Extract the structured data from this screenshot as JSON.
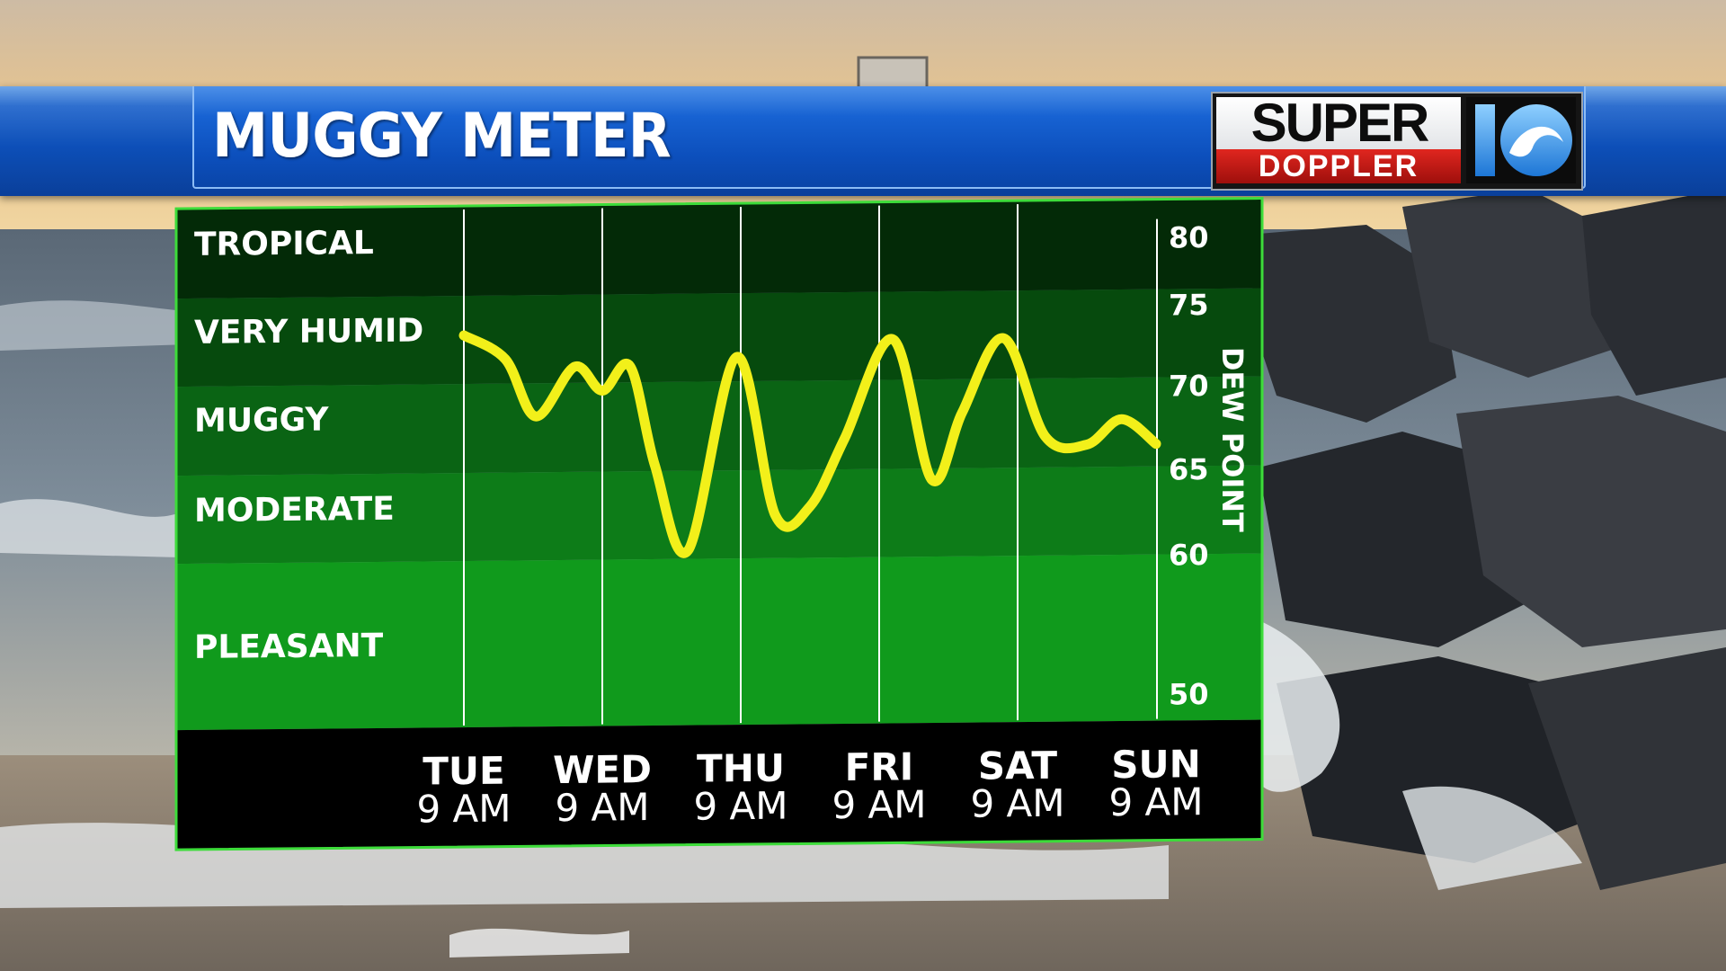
{
  "header": {
    "title": "MUGGY METER"
  },
  "logo": {
    "line1": "SUPER",
    "line2": "DOPPLER",
    "number": "10"
  },
  "colors": {
    "line": "#f2f01a",
    "bands": [
      "#032a07",
      "#064a0d",
      "#0a6414",
      "#0d7c18",
      "#109a1c"
    ],
    "chart_border": "#3ddc3a",
    "axis_strip": "#000000",
    "header_blue": "#0d4fb8"
  },
  "chart_data": {
    "type": "line",
    "title": "MUGGY METER",
    "ylabel": "DEW POINT",
    "xlabel": "",
    "ylim": [
      50,
      80
    ],
    "y_ticks": [
      50,
      60,
      65,
      70,
      75,
      80
    ],
    "categories": [
      {
        "day": "TUE",
        "time": "9 AM"
      },
      {
        "day": "WED",
        "time": "9 AM"
      },
      {
        "day": "THU",
        "time": "9 AM"
      },
      {
        "day": "FRI",
        "time": "9 AM"
      },
      {
        "day": "SAT",
        "time": "9 AM"
      },
      {
        "day": "SUN",
        "time": "9 AM"
      }
    ],
    "bands": [
      {
        "label": "TROPICAL",
        "from": 75,
        "to": 80
      },
      {
        "label": "VERY HUMID",
        "from": 70,
        "to": 75
      },
      {
        "label": "MUGGY",
        "from": 65,
        "to": 70
      },
      {
        "label": "MODERATE",
        "from": 60,
        "to": 65
      },
      {
        "label": "PLEASANT",
        "from": 50,
        "to": 60
      }
    ],
    "grid": true,
    "series": [
      {
        "values": [
          {
            "x": 0.0,
            "y": 73.5
          },
          {
            "x": 0.3,
            "y": 72.0
          },
          {
            "x": 0.52,
            "y": 68.5
          },
          {
            "x": 0.8,
            "y": 71.5
          },
          {
            "x": 1.0,
            "y": 70.0
          },
          {
            "x": 1.2,
            "y": 71.5
          },
          {
            "x": 1.38,
            "y": 65.5
          },
          {
            "x": 1.62,
            "y": 60.5
          },
          {
            "x": 1.97,
            "y": 72.0
          },
          {
            "x": 2.25,
            "y": 62.5
          },
          {
            "x": 2.5,
            "y": 63.0
          },
          {
            "x": 2.75,
            "y": 67.0
          },
          {
            "x": 3.1,
            "y": 73.0
          },
          {
            "x": 3.38,
            "y": 64.5
          },
          {
            "x": 3.6,
            "y": 68.5
          },
          {
            "x": 3.9,
            "y": 73.0
          },
          {
            "x": 4.2,
            "y": 67.0
          },
          {
            "x": 4.5,
            "y": 66.5
          },
          {
            "x": 4.75,
            "y": 68.0
          },
          {
            "x": 5.0,
            "y": 66.5
          }
        ]
      }
    ]
  }
}
